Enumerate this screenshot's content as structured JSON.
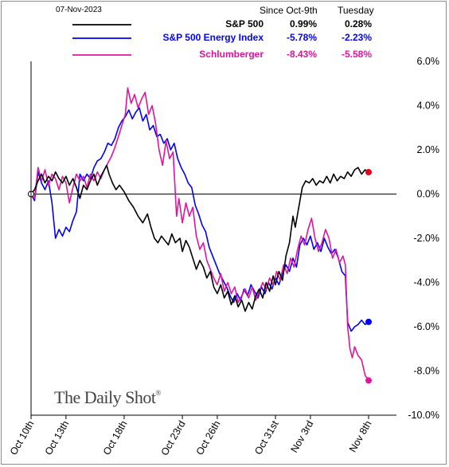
{
  "header": {
    "date": "07-Nov-2023",
    "col1": "Since Oct-9th",
    "col2": "Tuesday"
  },
  "watermark": "The Daily Shot",
  "watermark_mark": "®",
  "chart_data": {
    "type": "line",
    "title": "",
    "xlabel": "",
    "ylabel": "",
    "ylim": [
      -10,
      6
    ],
    "yticks": [
      "6.0%",
      "4.0%",
      "2.0%",
      "0.0%",
      "-2.0%",
      "-4.0%",
      "-6.0%",
      "-8.0%",
      "-10.0%"
    ],
    "ytick_values": [
      6,
      4,
      2,
      0,
      -2,
      -4,
      -6,
      -8,
      -10
    ],
    "xticks": [
      "Oct 10th",
      "Oct 13th",
      "Oct 18th",
      "Oct 23rd",
      "Oct 26th",
      "Oct 31st",
      "Nov 3rd",
      "Nov 8th"
    ],
    "xtick_days": [
      0,
      3,
      8,
      13,
      16,
      21,
      24,
      29
    ],
    "x_unit": "days from Oct 10th",
    "legend_position": "top",
    "series": [
      {
        "name": "S&P 500",
        "color": "#000000",
        "since": "0.99%",
        "tuesday": "0.28%",
        "points": [
          [
            0,
            0
          ],
          [
            0.3,
            0.2
          ],
          [
            0.6,
            0.6
          ],
          [
            0.9,
            0.9
          ],
          [
            1.2,
            0.5
          ],
          [
            1.5,
            0.8
          ],
          [
            1.8,
            0.6
          ],
          [
            2.1,
            1.0
          ],
          [
            2.4,
            0.7
          ],
          [
            2.7,
            0.5
          ],
          [
            3.0,
            0.8
          ],
          [
            3.3,
            0.4
          ],
          [
            3.6,
            0.7
          ],
          [
            3.9,
            0.3
          ],
          [
            4.2,
            -0.2
          ],
          [
            4.5,
            0.4
          ],
          [
            4.8,
            0.2
          ],
          [
            5.1,
            0.6
          ],
          [
            5.4,
            0.9
          ],
          [
            5.7,
            0.4
          ],
          [
            6.0,
            0.8
          ],
          [
            6.3,
            1.1
          ],
          [
            6.5,
            1.3
          ],
          [
            6.7,
            0.9
          ],
          [
            7.0,
            0.5
          ],
          [
            7.3,
            0.2
          ],
          [
            7.6,
            0.4
          ],
          [
            8.0,
            0.1
          ],
          [
            8.4,
            -0.3
          ],
          [
            8.8,
            -0.6
          ],
          [
            9.2,
            -1.0
          ],
          [
            9.6,
            -1.3
          ],
          [
            10.0,
            -0.9
          ],
          [
            10.3,
            -1.5
          ],
          [
            10.6,
            -2.0
          ],
          [
            10.9,
            -2.2
          ],
          [
            11.2,
            -1.9
          ],
          [
            11.5,
            -2.1
          ],
          [
            11.8,
            -2.3
          ],
          [
            12.1,
            -1.8
          ],
          [
            12.4,
            -2.2
          ],
          [
            12.8,
            -2.0
          ],
          [
            13.0,
            -2.6
          ],
          [
            13.3,
            -2.1
          ],
          [
            13.6,
            -2.4
          ],
          [
            13.9,
            -2.9
          ],
          [
            14.2,
            -3.4
          ],
          [
            14.5,
            -3.0
          ],
          [
            14.8,
            -3.3
          ],
          [
            15.1,
            -3.8
          ],
          [
            15.4,
            -3.5
          ],
          [
            15.7,
            -4.2
          ],
          [
            16.0,
            -4.5
          ],
          [
            16.3,
            -4.1
          ],
          [
            16.6,
            -4.7
          ],
          [
            16.9,
            -4.4
          ],
          [
            17.2,
            -5.0
          ],
          [
            17.5,
            -4.6
          ],
          [
            17.8,
            -5.1
          ],
          [
            18.1,
            -4.8
          ],
          [
            18.4,
            -5.3
          ],
          [
            18.7,
            -4.9
          ],
          [
            19.0,
            -5.2
          ],
          [
            19.3,
            -4.6
          ],
          [
            19.6,
            -4.3
          ],
          [
            19.9,
            -4.7
          ],
          [
            20.2,
            -4.0
          ],
          [
            20.5,
            -4.4
          ],
          [
            20.8,
            -3.7
          ],
          [
            21.0,
            -4.1
          ],
          [
            21.3,
            -3.5
          ],
          [
            21.6,
            -3.9
          ],
          [
            21.9,
            -2.8
          ],
          [
            22.2,
            -2.2
          ],
          [
            22.5,
            -1.0
          ],
          [
            22.7,
            -1.5
          ],
          [
            23.0,
            -0.6
          ],
          [
            23.3,
            0.3
          ],
          [
            23.6,
            0.6
          ],
          [
            23.9,
            0.5
          ],
          [
            24.2,
            0.7
          ],
          [
            24.5,
            0.4
          ],
          [
            24.8,
            0.6
          ],
          [
            25.1,
            0.5
          ],
          [
            25.4,
            0.8
          ],
          [
            25.7,
            0.5
          ],
          [
            26.0,
            0.9
          ],
          [
            26.3,
            0.6
          ],
          [
            26.6,
            0.8
          ],
          [
            26.9,
            0.7
          ],
          [
            27.2,
            1.0
          ],
          [
            27.5,
            0.8
          ],
          [
            27.8,
            1.1
          ],
          [
            28.1,
            1.2
          ],
          [
            28.4,
            0.9
          ],
          [
            28.7,
            1.1
          ],
          [
            29.0,
            0.99
          ]
        ]
      },
      {
        "name": "S&P 500 Energy Index",
        "color": "#0000ff",
        "since": "-5.78%",
        "tuesday": "-2.23%",
        "points": [
          [
            0,
            0
          ],
          [
            0.3,
            -0.3
          ],
          [
            0.6,
            1.0
          ],
          [
            0.9,
            0.5
          ],
          [
            1.2,
            0.2
          ],
          [
            1.5,
            0.6
          ],
          [
            1.8,
            -0.4
          ],
          [
            2.1,
            -2.0
          ],
          [
            2.4,
            -1.6
          ],
          [
            2.7,
            -1.9
          ],
          [
            3.0,
            -1.5
          ],
          [
            3.3,
            -1.7
          ],
          [
            3.6,
            -1.2
          ],
          [
            3.9,
            -0.8
          ],
          [
            4.2,
            0.9
          ],
          [
            4.5,
            0.6
          ],
          [
            4.8,
            0.9
          ],
          [
            5.1,
            0.7
          ],
          [
            5.4,
            1.2
          ],
          [
            5.7,
            1.5
          ],
          [
            6.0,
            1.6
          ],
          [
            6.3,
            1.9
          ],
          [
            6.6,
            2.3
          ],
          [
            6.9,
            2.2
          ],
          [
            7.2,
            2.5
          ],
          [
            7.5,
            3.0
          ],
          [
            7.8,
            3.3
          ],
          [
            8.1,
            3.5
          ],
          [
            8.4,
            3.8
          ],
          [
            8.7,
            3.4
          ],
          [
            9.0,
            3.7
          ],
          [
            9.3,
            3.9
          ],
          [
            9.6,
            3.3
          ],
          [
            9.9,
            3.6
          ],
          [
            10.2,
            2.9
          ],
          [
            10.5,
            3.1
          ],
          [
            10.8,
            2.6
          ],
          [
            11.1,
            2.7
          ],
          [
            11.4,
            2.3
          ],
          [
            11.7,
            2.5
          ],
          [
            12.0,
            2.0
          ],
          [
            12.3,
            2.3
          ],
          [
            12.6,
            1.6
          ],
          [
            12.9,
            1.2
          ],
          [
            13.2,
            0.9
          ],
          [
            13.5,
            0.5
          ],
          [
            13.8,
            0.3
          ],
          [
            14.1,
            -0.5
          ],
          [
            14.4,
            -0.9
          ],
          [
            14.7,
            -1.4
          ],
          [
            15.0,
            -1.7
          ],
          [
            15.3,
            -2.4
          ],
          [
            15.6,
            -2.8
          ],
          [
            15.9,
            -3.2
          ],
          [
            16.2,
            -3.6
          ],
          [
            16.5,
            -3.9
          ],
          [
            16.8,
            -4.2
          ],
          [
            17.1,
            -4.6
          ],
          [
            17.4,
            -4.9
          ],
          [
            17.7,
            -4.5
          ],
          [
            18.0,
            -4.8
          ],
          [
            18.3,
            -4.3
          ],
          [
            18.6,
            -4.6
          ],
          [
            18.9,
            -4.1
          ],
          [
            19.2,
            -4.4
          ],
          [
            19.5,
            -4.7
          ],
          [
            19.8,
            -4.2
          ],
          [
            20.1,
            -4.5
          ],
          [
            20.4,
            -4.0
          ],
          [
            20.7,
            -4.3
          ],
          [
            21.0,
            -3.8
          ],
          [
            21.3,
            -4.1
          ],
          [
            21.6,
            -3.6
          ],
          [
            21.9,
            -3.2
          ],
          [
            22.2,
            -3.5
          ],
          [
            22.5,
            -2.9
          ],
          [
            22.8,
            -3.3
          ],
          [
            23.1,
            -2.3
          ],
          [
            23.4,
            -2.0
          ],
          [
            23.7,
            -2.3
          ],
          [
            24.0,
            -1.9
          ],
          [
            24.3,
            -2.5
          ],
          [
            24.6,
            -2.2
          ],
          [
            24.9,
            -2.6
          ],
          [
            25.2,
            -2.0
          ],
          [
            25.5,
            -2.4
          ],
          [
            25.8,
            -2.7
          ],
          [
            26.1,
            -2.5
          ],
          [
            26.4,
            -2.9
          ],
          [
            26.7,
            -3.5
          ],
          [
            27.0,
            -3.7
          ],
          [
            27.2,
            -5.8
          ],
          [
            27.5,
            -6.2
          ],
          [
            27.8,
            -6.0
          ],
          [
            28.1,
            -5.9
          ],
          [
            28.4,
            -5.7
          ],
          [
            28.7,
            -5.9
          ],
          [
            29.0,
            -5.78
          ]
        ]
      },
      {
        "name": "Schlumberger",
        "color": "#e0149c",
        "since": "-8.43%",
        "tuesday": "-5.58%",
        "points": [
          [
            0,
            0
          ],
          [
            0.3,
            -0.2
          ],
          [
            0.6,
            1.2
          ],
          [
            0.9,
            0.6
          ],
          [
            1.2,
            1.1
          ],
          [
            1.5,
            0.4
          ],
          [
            1.8,
            0.9
          ],
          [
            2.1,
            0.7
          ],
          [
            2.4,
            0.2
          ],
          [
            2.7,
            0.8
          ],
          [
            3.0,
            0.5
          ],
          [
            3.3,
            -0.4
          ],
          [
            3.6,
            0.3
          ],
          [
            3.9,
            0.9
          ],
          [
            4.2,
            0.6
          ],
          [
            4.5,
            0.8
          ],
          [
            4.8,
            0.3
          ],
          [
            5.1,
            0.9
          ],
          [
            5.4,
            0.6
          ],
          [
            5.7,
            1.0
          ],
          [
            6.0,
            0.7
          ],
          [
            6.3,
            1.1
          ],
          [
            6.6,
            1.4
          ],
          [
            6.9,
            1.7
          ],
          [
            7.2,
            2.1
          ],
          [
            7.5,
            2.6
          ],
          [
            7.8,
            3.1
          ],
          [
            8.1,
            3.6
          ],
          [
            8.3,
            4.8
          ],
          [
            8.6,
            4.1
          ],
          [
            8.9,
            4.5
          ],
          [
            9.2,
            3.9
          ],
          [
            9.5,
            4.3
          ],
          [
            9.8,
            4.6
          ],
          [
            10.1,
            3.6
          ],
          [
            10.4,
            4.0
          ],
          [
            10.7,
            3.2
          ],
          [
            11.0,
            2.0
          ],
          [
            11.3,
            1.3
          ],
          [
            11.6,
            2.4
          ],
          [
            11.9,
            1.6
          ],
          [
            12.2,
            1.9
          ],
          [
            12.5,
            -1.0
          ],
          [
            12.7,
            -0.2
          ],
          [
            13.0,
            -1.3
          ],
          [
            13.3,
            -0.4
          ],
          [
            13.6,
            -1.0
          ],
          [
            13.9,
            -0.6
          ],
          [
            14.2,
            -1.9
          ],
          [
            14.5,
            -2.5
          ],
          [
            14.8,
            -2.2
          ],
          [
            15.1,
            -3.0
          ],
          [
            15.4,
            -3.4
          ],
          [
            15.7,
            -3.8
          ],
          [
            16.0,
            -4.1
          ],
          [
            16.3,
            -3.6
          ],
          [
            16.6,
            -4.4
          ],
          [
            16.9,
            -4.0
          ],
          [
            17.2,
            -4.5
          ],
          [
            17.5,
            -4.2
          ],
          [
            17.8,
            -4.9
          ],
          [
            18.1,
            -4.6
          ],
          [
            18.4,
            -4.3
          ],
          [
            18.7,
            -4.7
          ],
          [
            19.0,
            -4.2
          ],
          [
            19.3,
            -4.8
          ],
          [
            19.6,
            -4.4
          ],
          [
            19.9,
            -4.0
          ],
          [
            20.2,
            -4.3
          ],
          [
            20.5,
            -3.8
          ],
          [
            20.8,
            -4.1
          ],
          [
            21.1,
            -3.5
          ],
          [
            21.4,
            -3.9
          ],
          [
            21.7,
            -3.2
          ],
          [
            22.0,
            -3.6
          ],
          [
            22.3,
            -2.9
          ],
          [
            22.6,
            -3.3
          ],
          [
            22.9,
            -2.5
          ],
          [
            23.2,
            -1.9
          ],
          [
            23.5,
            -2.3
          ],
          [
            23.8,
            -1.6
          ],
          [
            24.1,
            -1.1
          ],
          [
            24.4,
            -2.0
          ],
          [
            24.7,
            -2.6
          ],
          [
            25.0,
            -2.2
          ],
          [
            25.3,
            -1.6
          ],
          [
            25.6,
            -2.0
          ],
          [
            25.9,
            -2.9
          ],
          [
            26.2,
            -2.5
          ],
          [
            26.5,
            -3.1
          ],
          [
            26.8,
            -2.8
          ],
          [
            27.0,
            -3.2
          ],
          [
            27.2,
            -6.0
          ],
          [
            27.4,
            -7.0
          ],
          [
            27.6,
            -7.4
          ],
          [
            27.8,
            -6.9
          ],
          [
            28.1,
            -7.3
          ],
          [
            28.4,
            -7.5
          ],
          [
            28.7,
            -8.2
          ],
          [
            29.0,
            -8.43
          ]
        ]
      }
    ]
  }
}
